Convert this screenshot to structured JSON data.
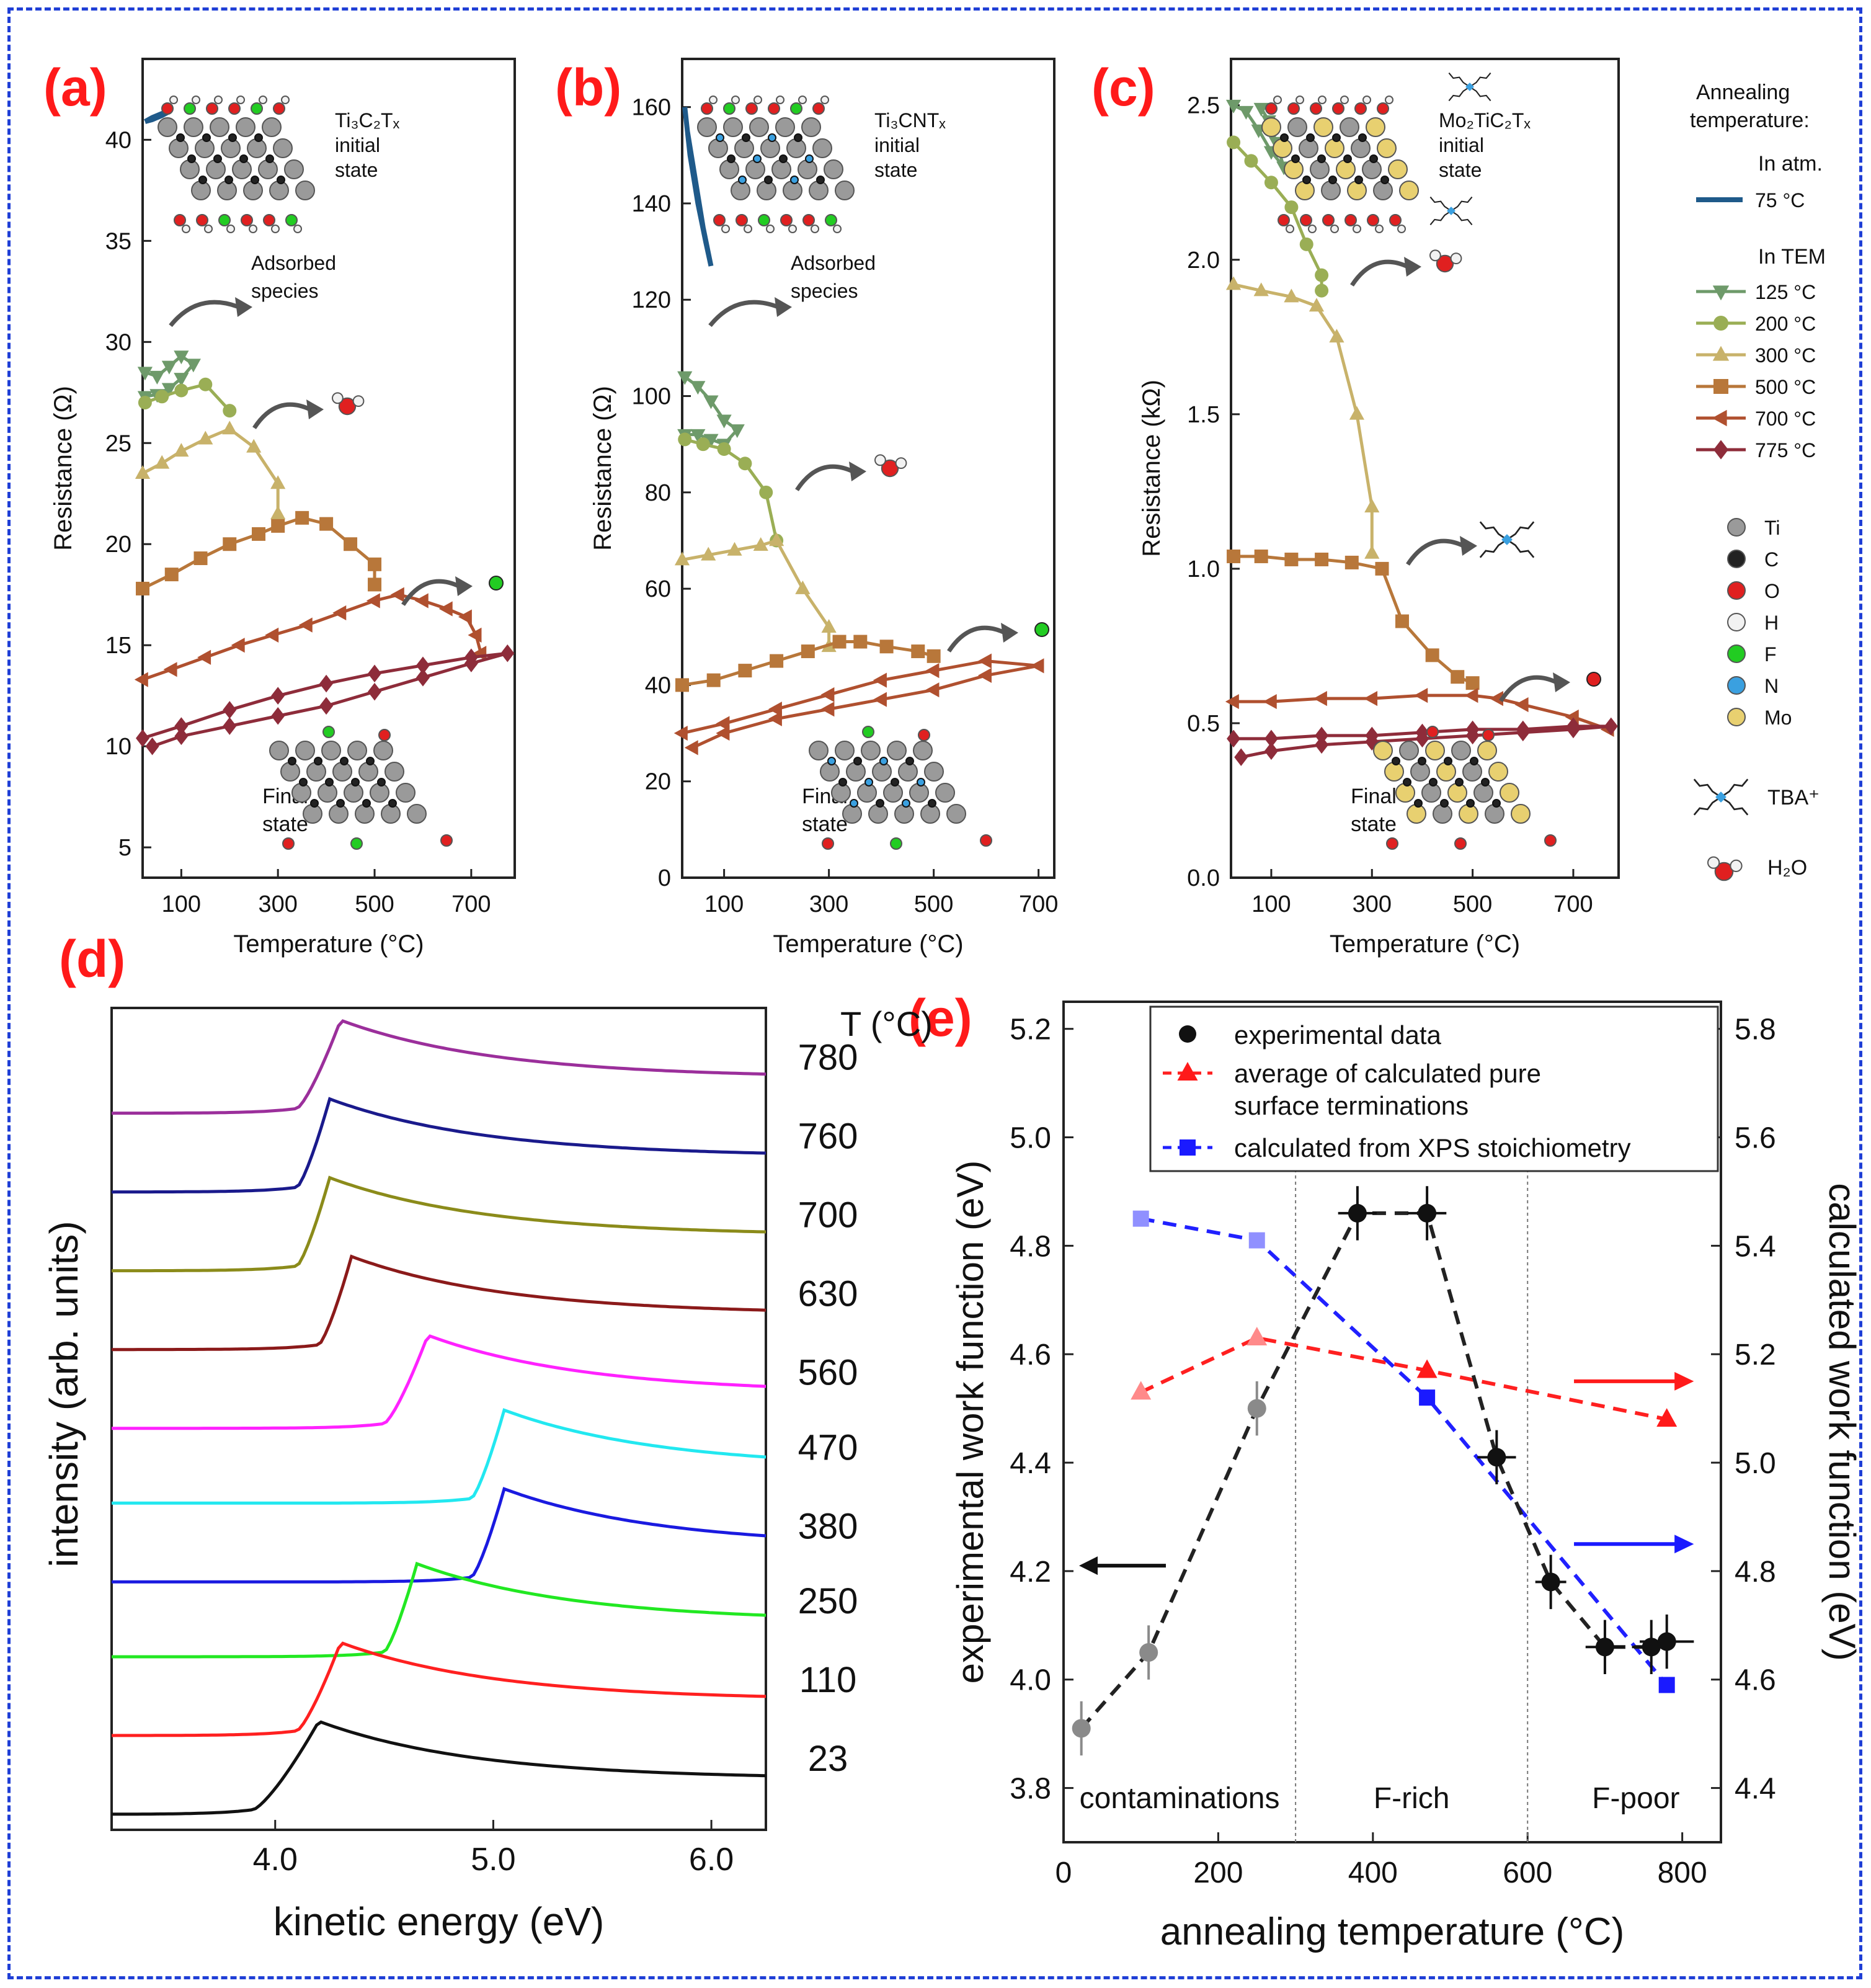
{
  "colors": {
    "frame": "#1f3fd6",
    "panel_label": "#ff1a1a",
    "atm75": "#1f5a8a",
    "c125": "#6e9a6a",
    "c200": "#9aae55",
    "c300": "#c8b26a",
    "c500": "#b8773a",
    "c700": "#b0502f",
    "c775": "#8e2c3a",
    "Ti": "#9a9a9a",
    "C": "#222222",
    "O": "#e02020",
    "H": "#f2f2f2",
    "F": "#22cc22",
    "N": "#3aa0e0",
    "Mo": "#e8d070",
    "TBA": "#3aa0e0"
  },
  "labels": {
    "a": "(a)",
    "b": "(b)",
    "c": "(c)",
    "d": "(d)",
    "e": "(e)"
  },
  "legend_abc": {
    "title1": "Annealing",
    "title2": "temperature:",
    "atm_header": "In atm.",
    "tem_header": "In TEM",
    "entries": [
      "75 °C",
      "125 °C",
      "200 °C",
      "300 °C",
      "500 °C",
      "700 °C",
      "775 °C"
    ],
    "atoms": [
      "Ti",
      "C",
      "O",
      "H",
      "F",
      "N",
      "Mo"
    ],
    "tba": "TBA⁺",
    "h2o": "H₂O"
  },
  "icons": {
    "tba": "tba-molecule-icon",
    "water": "water-molecule-icon",
    "fluorine": "fluorine-atom-icon",
    "oxygen": "oxygen-atom-icon",
    "arrow": "curved-arrow-icon",
    "lattice": "mxene-lattice-icon"
  },
  "chart_data": [
    {
      "panel": "a",
      "type": "line",
      "title": "Ti₃C₂Tₓ",
      "subtitle": "initial state",
      "final_label": [
        "Final",
        "state"
      ],
      "annotations": [
        "Adsorbed",
        "species"
      ],
      "xlabel": "Temperature (°C)",
      "ylabel": "Resistance (Ω)",
      "xlim": [
        20,
        790
      ],
      "ylim": [
        3.5,
        44
      ],
      "xticks": [
        100,
        300,
        500,
        700
      ],
      "yticks": [
        5,
        10,
        15,
        20,
        25,
        30,
        35,
        40
      ],
      "series": [
        {
          "name": "75 °C",
          "x": [
            25,
            40,
            60,
            75,
            60,
            40,
            25
          ],
          "y": [
            40.9,
            41.0,
            41.2,
            41.4,
            41.3,
            41.1,
            40.9
          ]
        },
        {
          "name": "125 °C",
          "x": [
            25,
            50,
            75,
            100,
            125,
            100,
            75,
            50,
            25
          ],
          "y": [
            28.5,
            28.3,
            28.8,
            29.3,
            28.9,
            28.2,
            27.7,
            27.4,
            27.3
          ]
        },
        {
          "name": "200 °C",
          "x": [
            25,
            60,
            100,
            150,
            200
          ],
          "y": [
            27.0,
            27.3,
            27.6,
            27.9,
            26.6
          ]
        },
        {
          "name": "300 °C",
          "x": [
            20,
            60,
            100,
            150,
            200,
            250,
            300,
            300
          ],
          "y": [
            23.5,
            24.0,
            24.6,
            25.2,
            25.7,
            24.8,
            23.0,
            21.5
          ]
        },
        {
          "name": "500 °C",
          "x": [
            20,
            80,
            140,
            200,
            260,
            300,
            350,
            400,
            450,
            500,
            500
          ],
          "y": [
            17.8,
            18.5,
            19.3,
            20.0,
            20.5,
            20.9,
            21.3,
            21.0,
            20.0,
            19.0,
            18.0
          ]
        },
        {
          "name": "700 °C",
          "x": [
            20,
            80,
            150,
            220,
            290,
            360,
            430,
            500,
            550,
            600,
            650,
            690,
            710,
            720
          ],
          "y": [
            13.3,
            13.8,
            14.4,
            15.0,
            15.5,
            16.0,
            16.6,
            17.2,
            17.5,
            17.2,
            16.8,
            16.4,
            15.5,
            14.6
          ]
        },
        {
          "name": "775 °C",
          "x": [
            20,
            100,
            200,
            300,
            400,
            500,
            600,
            700,
            775,
            700,
            600,
            500,
            400,
            300,
            200,
            100,
            40
          ],
          "y": [
            10.4,
            11.0,
            11.8,
            12.5,
            13.1,
            13.6,
            14.0,
            14.4,
            14.6,
            14.1,
            13.4,
            12.7,
            12.0,
            11.5,
            11.0,
            10.5,
            10.0
          ]
        }
      ]
    },
    {
      "panel": "b",
      "type": "line",
      "title": "Ti₃CNTₓ",
      "subtitle": "initial state",
      "final_label": [
        "Final",
        "state"
      ],
      "annotations": [
        "Adsorbed",
        "species"
      ],
      "xlabel": "Temperature (°C)",
      "ylabel": "Resistance (Ω)",
      "xlim": [
        20,
        730
      ],
      "ylim": [
        0,
        170
      ],
      "xticks": [
        100,
        300,
        500,
        700
      ],
      "yticks": [
        0,
        20,
        40,
        60,
        80,
        100,
        120,
        140,
        160
      ],
      "series": [
        {
          "name": "75 °C",
          "x": [
            25,
            35,
            50,
            65,
            75,
            60,
            45,
            30,
            25
          ],
          "y": [
            160,
            150,
            140,
            132,
            127,
            135,
            145,
            155,
            160
          ]
        },
        {
          "name": "125 °C",
          "x": [
            25,
            50,
            75,
            100,
            125,
            100,
            75,
            50,
            25
          ],
          "y": [
            104,
            102,
            99,
            95,
            93,
            90,
            91,
            92,
            92
          ]
        },
        {
          "name": "200 °C",
          "x": [
            25,
            60,
            100,
            140,
            180,
            200
          ],
          "y": [
            91,
            90,
            89,
            86,
            80,
            70
          ]
        },
        {
          "name": "300 °C",
          "x": [
            20,
            70,
            120,
            170,
            200,
            250,
            300,
            300
          ],
          "y": [
            66,
            67,
            68,
            69,
            70,
            60,
            52,
            48
          ]
        },
        {
          "name": "500 °C",
          "x": [
            20,
            80,
            140,
            200,
            260,
            320,
            360,
            410,
            470,
            500
          ],
          "y": [
            40,
            41,
            43,
            45,
            47,
            49,
            49,
            48,
            47,
            46
          ]
        },
        {
          "name": "700 °C",
          "x": [
            20,
            100,
            200,
            300,
            400,
            500,
            600,
            700,
            600,
            500,
            400,
            300,
            200,
            100,
            40
          ],
          "y": [
            30,
            32,
            35,
            38,
            41,
            43,
            45,
            44,
            42,
            39,
            37,
            35,
            33,
            30,
            27
          ]
        }
      ]
    },
    {
      "panel": "c",
      "type": "line",
      "title": "Mo₂TiC₂Tₓ",
      "subtitle": "initial state",
      "final_label": [
        "Final",
        "state"
      ],
      "annotations": [],
      "xlabel": "Temperature (°C)",
      "ylabel": "Resistance (kΩ)",
      "xlim": [
        20,
        790
      ],
      "ylim": [
        0,
        2.65
      ],
      "xticks": [
        100,
        300,
        500,
        700
      ],
      "yticks": [
        0.0,
        0.5,
        1.0,
        1.5,
        2.0,
        2.5
      ],
      "ytick_labels": [
        "0.0",
        "0.5",
        "1.0",
        "1.5",
        "2.0",
        "2.5"
      ],
      "series": [
        {
          "name": "125 °C",
          "x": [
            25,
            50,
            75,
            100,
            125,
            110,
            95,
            80
          ],
          "y": [
            2.5,
            2.48,
            2.42,
            2.35,
            2.3,
            2.38,
            2.45,
            2.49
          ]
        },
        {
          "name": "200 °C",
          "x": [
            25,
            60,
            100,
            140,
            170,
            200,
            200
          ],
          "y": [
            2.38,
            2.32,
            2.25,
            2.17,
            2.05,
            1.95,
            1.9
          ]
        },
        {
          "name": "300 °C",
          "x": [
            25,
            80,
            140,
            190,
            230,
            270,
            300,
            300
          ],
          "y": [
            1.92,
            1.9,
            1.88,
            1.85,
            1.75,
            1.5,
            1.2,
            1.05
          ]
        },
        {
          "name": "500 °C",
          "x": [
            25,
            80,
            140,
            200,
            260,
            320,
            360,
            420,
            470,
            500
          ],
          "y": [
            1.04,
            1.04,
            1.03,
            1.03,
            1.02,
            1.0,
            0.83,
            0.72,
            0.65,
            0.63
          ]
        },
        {
          "name": "700 °C",
          "x": [
            25,
            100,
            200,
            300,
            400,
            500,
            550,
            600,
            700,
            770
          ],
          "y": [
            0.57,
            0.57,
            0.58,
            0.58,
            0.59,
            0.59,
            0.58,
            0.56,
            0.52,
            0.48
          ]
        },
        {
          "name": "775 °C",
          "x": [
            25,
            100,
            200,
            300,
            400,
            500,
            600,
            700,
            775,
            700,
            600,
            500,
            400,
            300,
            200,
            100,
            40
          ],
          "y": [
            0.45,
            0.45,
            0.46,
            0.46,
            0.47,
            0.48,
            0.48,
            0.49,
            0.49,
            0.48,
            0.47,
            0.46,
            0.45,
            0.44,
            0.43,
            0.41,
            0.39
          ]
        }
      ]
    },
    {
      "panel": "d",
      "type": "line",
      "title": "",
      "xlabel": "kinetic energy (eV)",
      "ylabel": "intensity (arb. units)",
      "xlim": [
        3.25,
        6.25
      ],
      "xticks": [
        4.0,
        5.0,
        6.0
      ],
      "xtick_labels": [
        "4.0",
        "5.0",
        "6.0"
      ],
      "legend_title": "T (°C)",
      "series": [
        {
          "name": "780",
          "color": "#9b2f9b",
          "onset": 4.1,
          "peak": 4.3,
          "offset": 8.9
        },
        {
          "name": "760",
          "color": "#1a1a8c",
          "onset": 4.1,
          "peak": 4.25,
          "offset": 7.9
        },
        {
          "name": "700",
          "color": "#8b8b1a",
          "onset": 4.1,
          "peak": 4.25,
          "offset": 6.9
        },
        {
          "name": "630",
          "color": "#8b1a1a",
          "onset": 4.2,
          "peak": 4.35,
          "offset": 5.9
        },
        {
          "name": "560",
          "color": "#ff22ff",
          "onset": 4.5,
          "peak": 4.7,
          "offset": 4.9
        },
        {
          "name": "470",
          "color": "#22e8f0",
          "onset": 4.9,
          "peak": 5.05,
          "offset": 3.95
        },
        {
          "name": "380",
          "color": "#1a1ae0",
          "onset": 4.9,
          "peak": 5.05,
          "offset": 2.95
        },
        {
          "name": "250",
          "color": "#22e822",
          "onset": 4.5,
          "peak": 4.65,
          "offset": 2.0
        },
        {
          "name": "110",
          "color": "#ff2020",
          "onset": 4.1,
          "peak": 4.3,
          "offset": 1.0
        },
        {
          "name": "23",
          "color": "#111111",
          "onset": 3.9,
          "peak": 4.2,
          "offset": 0.0
        }
      ]
    },
    {
      "panel": "e",
      "type": "scatter",
      "xlabel": "annealing temperature (°C)",
      "ylabel": "experimental work function (eV)",
      "y2label": "calculated work function (eV)",
      "xlim": [
        0,
        850
      ],
      "ylim": [
        3.7,
        5.25
      ],
      "y2lim": [
        4.3,
        5.85
      ],
      "xticks": [
        0,
        200,
        400,
        600,
        800
      ],
      "yticks": [
        3.8,
        4.0,
        4.2,
        4.4,
        4.6,
        4.8,
        5.0,
        5.2
      ],
      "ytick_labels": [
        "3.8",
        "4.0",
        "4.2",
        "4.4",
        "4.6",
        "4.8",
        "5.0",
        "5.2"
      ],
      "y2ticks": [
        4.4,
        4.6,
        4.8,
        5.0,
        5.2,
        5.4,
        5.6,
        5.8
      ],
      "y2tick_labels": [
        "4.4",
        "4.6",
        "4.8",
        "5.0",
        "5.2",
        "5.4",
        "5.6",
        "5.8"
      ],
      "regions": [
        "contaminations",
        "F-rich",
        "F-poor"
      ],
      "region_bounds": [
        300,
        600
      ],
      "legend": [
        "experimental data",
        "average of calculated pure",
        "surface terminations",
        "calculated from XPS stoichiometry"
      ],
      "experimental": {
        "x": [
          23,
          110,
          250,
          380,
          470,
          560,
          630,
          700,
          760,
          780
        ],
        "y": [
          3.91,
          4.05,
          4.5,
          4.86,
          4.86,
          4.41,
          4.18,
          4.06,
          4.06,
          4.07
        ],
        "yerr": [
          0.05,
          0.05,
          0.05,
          0.05,
          0.05,
          0.05,
          0.05,
          0.05,
          0.05,
          0.05
        ],
        "xerr": [
          0,
          0,
          0,
          25,
          25,
          25,
          20,
          25,
          25,
          35
        ]
      },
      "average_pure_y2": {
        "x": [
          100,
          250,
          470,
          780
        ],
        "y": [
          5.13,
          5.23,
          5.17,
          5.08
        ]
      },
      "xps_y2": {
        "x": [
          100,
          250,
          470,
          780
        ],
        "y": [
          5.45,
          5.41,
          5.12,
          4.59
        ]
      }
    }
  ]
}
